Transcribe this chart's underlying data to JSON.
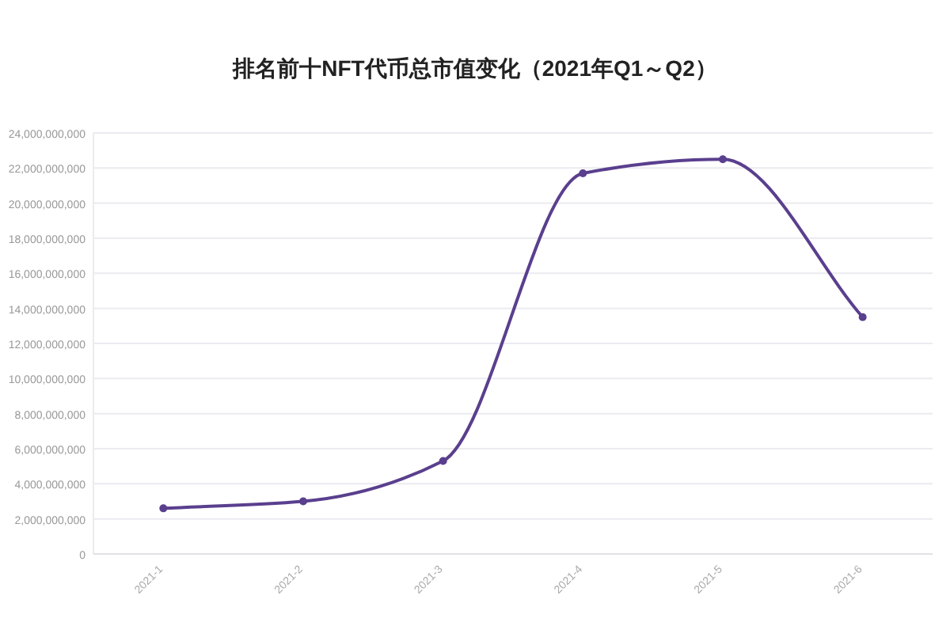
{
  "chart_data": {
    "type": "line",
    "title": "排名前十NFT代币总市值变化（2021年Q1～Q2）",
    "categories": [
      "2021-1",
      "2021-2",
      "2021-3",
      "2021-4",
      "2021-5",
      "2021-6"
    ],
    "series": [
      {
        "color": "#5a3f8e",
        "values": [
          2600000000,
          3000000000,
          5300000000,
          21700000000,
          22500000000,
          13500000000
        ]
      }
    ],
    "ylim": [
      0,
      24000000000
    ],
    "yticks": [
      0,
      {
        "value": 2000000000,
        "label": "2,000,000,000"
      },
      {
        "value": 4000000000,
        "label": "4,000,000,000"
      },
      {
        "value": 6000000000,
        "label": "6,000,000,000"
      },
      {
        "value": 8000000000,
        "label": "8,000,000,000"
      },
      {
        "value": 10000000000,
        "label": "10,000,000,000"
      },
      {
        "value": 12000000000,
        "label": "12,000,000,000"
      },
      {
        "value": 14000000000,
        "label": "14,000,000,000"
      },
      {
        "value": 16000000000,
        "label": "16,000,000,000"
      },
      {
        "value": 18000000000,
        "label": "18,000,000,000"
      },
      {
        "value": 20000000000,
        "label": "20,000,000,000"
      },
      {
        "value": 22000000000,
        "label": "22,000,000,000"
      },
      {
        "value": 24000000000,
        "label": "24,000,000,000"
      }
    ],
    "grid": "y",
    "marker": "circle",
    "line_style": "solid"
  }
}
